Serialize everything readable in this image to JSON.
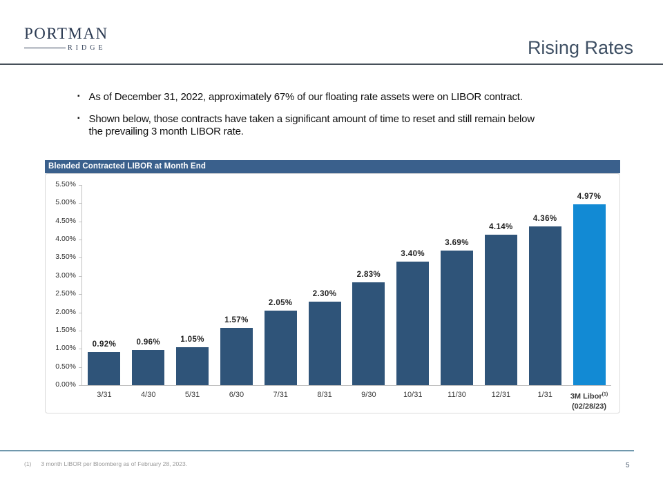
{
  "header": {
    "logo": {
      "line1": "PORTMAN",
      "line2": "RIDGE"
    },
    "title": "Rising Rates"
  },
  "bullets": [
    {
      "lines": [
        "As of December 31, 2022, approximately 67% of our floating rate assets were on LIBOR contract."
      ]
    },
    {
      "lines": [
        "Shown below, those contracts have taken a significant amount of time to reset and still remain below",
        "the prevailing 3 month LIBOR rate."
      ]
    }
  ],
  "chart_data": {
    "type": "bar",
    "title": "Blended Contracted LIBOR at Month End",
    "categories": [
      "3/31",
      "4/30",
      "5/31",
      "6/30",
      "7/31",
      "8/31",
      "9/30",
      "10/31",
      "11/30",
      "12/31",
      "1/31",
      "3M Libor"
    ],
    "last_category_sup": "(1)",
    "last_category_line2": "(02/28/23)",
    "values": [
      0.92,
      0.96,
      1.05,
      1.57,
      2.05,
      2.3,
      2.83,
      3.4,
      3.69,
      4.14,
      4.36,
      4.97
    ],
    "labels": [
      "0.92%",
      "0.96%",
      "1.05%",
      "1.57%",
      "2.05%",
      "2.30%",
      "2.83%",
      "3.40%",
      "3.69%",
      "4.14%",
      "4.36%",
      "4.97%"
    ],
    "xlabel": "",
    "ylabel": "",
    "ylim": [
      0,
      5.5
    ],
    "ytick_step": 0.5,
    "yticks": [
      "0.00%",
      "0.50%",
      "1.00%",
      "1.50%",
      "2.00%",
      "2.50%",
      "3.00%",
      "3.50%",
      "4.00%",
      "4.50%",
      "5.00%",
      "5.50%"
    ],
    "grid": false,
    "legend": false,
    "bar_color": "#2f5479",
    "highlight_color": "#128ad4",
    "highlight_index": 11
  },
  "footnote": {
    "marker": "(1)",
    "text": "3 month LIBOR per Bloomberg as of February 28, 2023."
  },
  "page_number": "5"
}
